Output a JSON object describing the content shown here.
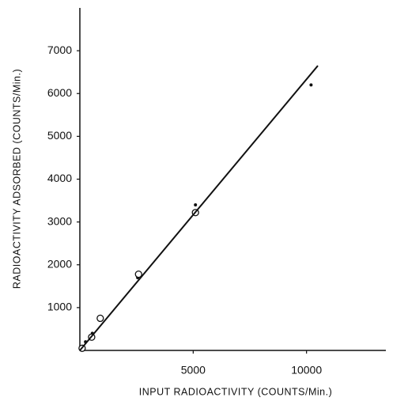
{
  "chart_data": {
    "type": "scatter",
    "x_label": "INPUT RADIOACTIVITY (COUNTS/Min.)",
    "y_label": "RADIOACTIVITY ADSORBED (COUNTS/Min.)",
    "xlim": [
      0,
      13500
    ],
    "ylim": [
      0,
      8000
    ],
    "xticks": [
      5000,
      10000
    ],
    "yticks": [
      1000,
      2000,
      3000,
      4000,
      5000,
      6000,
      7000
    ],
    "series": [
      {
        "marker": "filled",
        "color": "#111111",
        "x": [
          50,
          250,
          550,
          2550,
          5100,
          10200
        ],
        "values": [
          50,
          200,
          400,
          1700,
          3400,
          6200
        ]
      },
      {
        "marker": "open",
        "color": "#111111",
        "x": [
          100,
          520,
          900,
          2590,
          5100
        ],
        "values": [
          50,
          310,
          750,
          1780,
          3220
        ]
      },
      {
        "marker": "line",
        "color": "#111111",
        "x": [
          0,
          10500
        ],
        "values": [
          0,
          6650
        ]
      }
    ]
  }
}
